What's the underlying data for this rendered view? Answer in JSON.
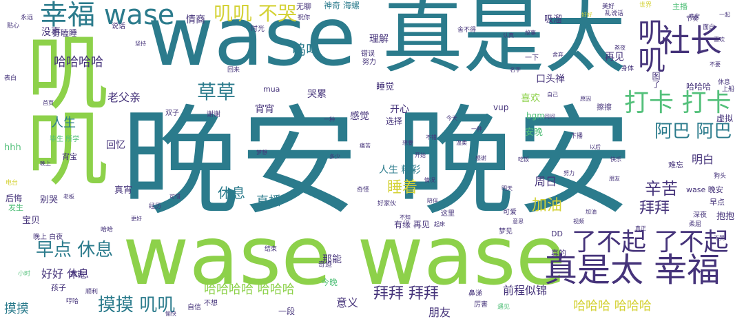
{
  "colors": {
    "green": "#8dd14a",
    "teal": "#2b7b8c",
    "purple": "#45337a",
    "yellow": "#d4d236",
    "blue": "#3a5f93",
    "mint": "#53c07a"
  },
  "words": {
    "w1": "晚安 晚安",
    "w2": "wase 真是太",
    "w3": "wase wase",
    "w4": "叽叽",
    "w5": "幸福 wase",
    "w6": "真是太 幸福",
    "w7": "社长",
    "w8": "叽叽 不哭",
    "w9": "打卡 打卡",
    "w10": "了不起 了不起",
    "w11": "草草",
    "w12": "阿巴 阿巴",
    "w13": "早点 休息",
    "w14": "摸摸 叽叽",
    "w15": "拜拜 拜拜",
    "w16": "哈哈哈哈",
    "w17": "哈哈哈哈 哈哈哈",
    "w18": "哈哈哈 哈哈哈",
    "w19": "加油",
    "w20": "睡着",
    "w21": "辛苦",
    "w22": "拜拜",
    "w23": "呜呜",
    "w24": "休息",
    "w25": "直播",
    "w26": "人生",
    "w27": "老父亲",
    "w28": "人生 精彩",
    "w29": "明白",
    "w30": "周日",
    "w31": "好好 休息",
    "w32": "前程似锦",
    "w33": "意义",
    "w34": "朋友",
    "w35": "摸摸",
    "w36": "那能",
    "w37": "感觉",
    "w38": "开心",
    "w39": "宵宵",
    "w40": "哭累",
    "w41": "理解",
    "w42": "神奇 海螺",
    "w43": "情商",
    "w44": "睡觉",
    "w45": "再见",
    "w46": "喜欢",
    "w47": "吸溜",
    "w48": "口头禅",
    "w49": "安晚",
    "w50": "没事",
    "w51": "打瞌睡",
    "w52": "回忆",
    "w53": "宵宝",
    "w54": "真宵",
    "w55": "别哭",
    "w56": "后悔",
    "w57": "宝贝",
    "w58": "hhh",
    "w59": "有缘 再见",
    "w60": "wase 晚安",
    "w61": "早点",
    "w62": "抱抱",
    "w63": "虚拟",
    "w64": "擦擦",
    "w65": "vup",
    "w66": "bgm",
    "w67": "DD",
    "w68": "今晚",
    "w69": "一段",
    "w70": "选择",
    "w71": "mua",
    "w72": "无聊",
    "w73": "主播",
    "w74": "孩子",
    "w75": "哈哈哈",
    "w76": "真的",
    "w77": "难忘",
    "w78": "图了",
    "w79": "错误",
    "w80": "努力",
    "w81": "毕生 所学",
    "w82": "这里",
    "w83": "谢谢",
    "w84": "奇迹",
    "w85": "说话",
    "w86": "一下",
    "w87": "深夜",
    "w88": "梦见",
    "w89": "时光",
    "w90": "厉害",
    "w91": "可爱",
    "w92": "双子",
    "w93": "晚上 白夜",
    "w94": "发生",
    "w95": "我能",
    "w96": "不想",
    "w97": "自信",
    "w98": "身体",
    "w99": "下播",
    "w100": "小时",
    "w101": "节奏",
    "w102": "表白",
    "w103": "永远",
    "w104": "贴心",
    "w105": "美好",
    "w106": "世界",
    "w107": "乱说话",
    "w108": "经历",
    "w109": "回来",
    "w110": "休息",
    "w111": "一种",
    "w112": "问问",
    "w113": "好家伙",
    "w114": "奇怪",
    "w115": "鼻涕",
    "w116": "顺利",
    "w117": "柔屈",
    "w118": "狗头",
    "w119": "上船",
    "w120": "哼哈",
    "w121": "想要",
    "w122": "熬夜",
    "w123": "多少",
    "w124": "老板",
    "w125": "舍不得",
    "w126": "更好",
    "w127": "一起",
    "w128": "晚上",
    "w129": "电台",
    "w130": "首页",
    "w131": "一种",
    "w132": "视频",
    "w133": "不哭",
    "w134": "遇见",
    "w135": "结束",
    "w136": "不错",
    "w137": "哈哈",
    "w138": "不知",
    "w139": "名字",
    "w140": "坚持",
    "w141": "面白",
    "w142": "好好",
    "w143": "今天",
    "w144": "祝你",
    "w145": "愉快",
    "w146": "梦想",
    "w147": "可惜",
    "w148": "痛苦",
    "w149": "自己",
    "w150": "认真",
    "w151": "舍弃",
    "w152": "温柔",
    "w153": "晚安",
    "w154": "陪伴",
    "w155": "情况",
    "w156": "喜欢",
    "w157": "感谢",
    "w158": "原因",
    "w159": "以后",
    "w160": "开始",
    "w161": "快乐",
    "w162": "吃饭",
    "w163": "朋友",
    "w164": "真正",
    "w165": "意思",
    "w166": "明天",
    "w167": "故事",
    "w168": "起床",
    "w169": "加油",
    "w170": "努力",
    "w171": "不要"
  }
}
